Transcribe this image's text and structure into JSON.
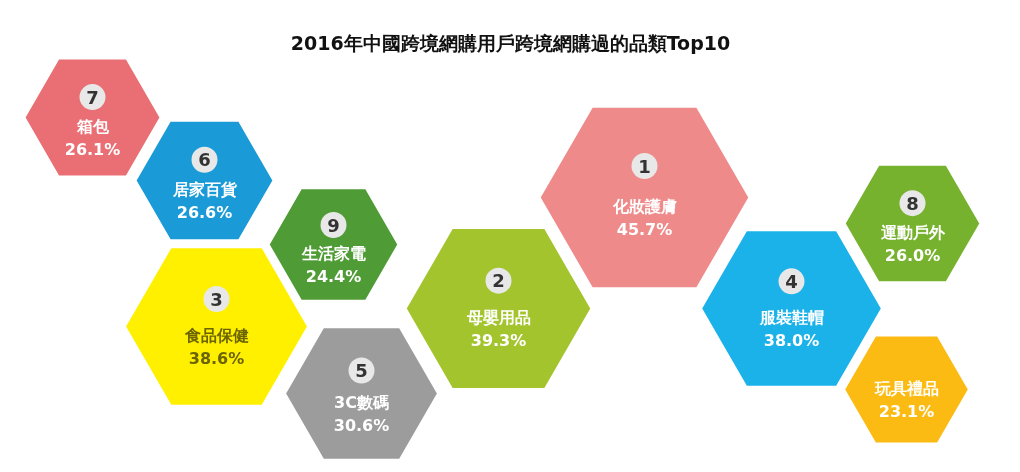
{
  "chart_data": {
    "type": "other",
    "title": "2016年中國跨境網購用戶跨境網購過的品類Top10",
    "categories": [
      "箱包",
      "居家百貨",
      "食品保健",
      "生活家電",
      "3C數碼",
      "母嬰用品",
      "化妝護膚",
      "服裝鞋帽",
      "玩具禮品",
      "運動戶外"
    ],
    "values": [
      26.1,
      26.6,
      38.6,
      24.4,
      30.6,
      39.3,
      45.7,
      38.0,
      23.1,
      26.0
    ],
    "value_labels": [
      "26.1%",
      "26.6%",
      "38.6%",
      "24.4%",
      "30.6%",
      "39.3%",
      "45.7%",
      "38.0%",
      "23.1%",
      "26.0%"
    ],
    "colors": [
      "#ea6f74",
      "#1a9ad7",
      "#fff000",
      "#4f9b35",
      "#9c9c9c",
      "#a3c42c",
      "#ef8a8a",
      "#1ab2e8",
      "#fbbb12",
      "#77b22e"
    ],
    "annotations": [
      {
        "text": "7",
        "x": "箱包"
      },
      {
        "text": "6",
        "x": "居家百貨"
      },
      {
        "text": "3",
        "x": "食品保健"
      },
      {
        "text": "9",
        "x": "生活家電"
      },
      {
        "text": "5",
        "x": "3C數碼"
      },
      {
        "text": "2",
        "x": "母嬰用品"
      },
      {
        "text": "1",
        "x": "化妝護膚"
      },
      {
        "text": "4",
        "x": "服裝鞋帽"
      },
      {
        "text": "8",
        "x": "運動戶外"
      }
    ]
  }
}
